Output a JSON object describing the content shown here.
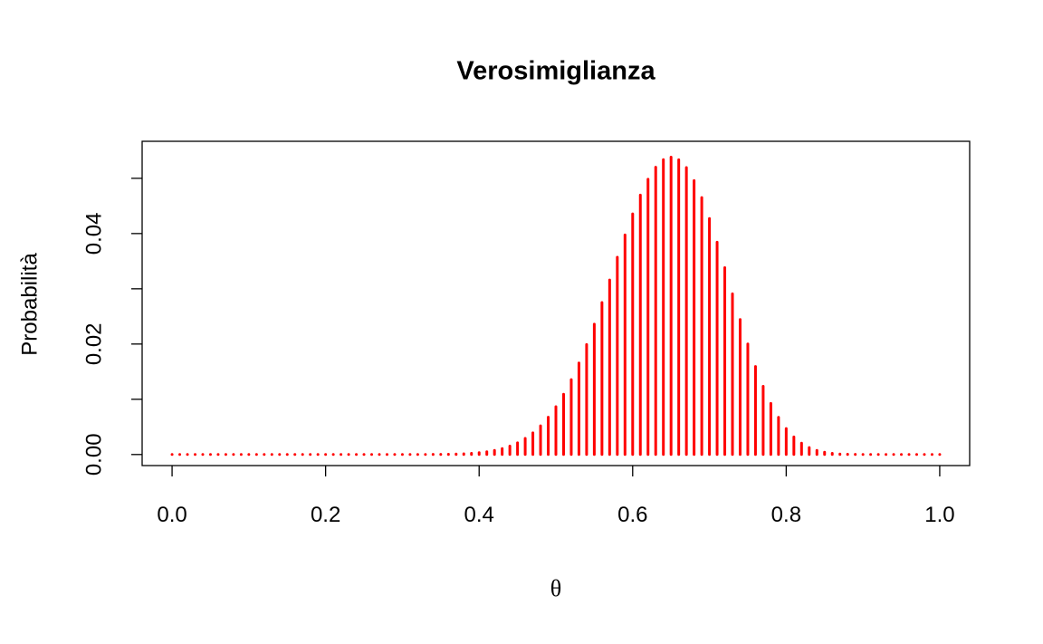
{
  "chart_data": {
    "type": "stem",
    "title": "Verosimiglianza",
    "xlabel": "θ",
    "ylabel": "Probabilità",
    "color": "#ff0000",
    "x": [
      0,
      0.01,
      0.02,
      0.03,
      0.04,
      0.05,
      0.06,
      0.07,
      0.08,
      0.09,
      0.1,
      0.11,
      0.12,
      0.13,
      0.14,
      0.15,
      0.16,
      0.17,
      0.18,
      0.19,
      0.2,
      0.21,
      0.22,
      0.23,
      0.24,
      0.25,
      0.26,
      0.27,
      0.28,
      0.29,
      0.3,
      0.31,
      0.32,
      0.33,
      0.34,
      0.35,
      0.36,
      0.37,
      0.38,
      0.39,
      0.4,
      0.41,
      0.42,
      0.43,
      0.44,
      0.45,
      0.46,
      0.47,
      0.48,
      0.49,
      0.5,
      0.51,
      0.52,
      0.53,
      0.54,
      0.55,
      0.56,
      0.57,
      0.58,
      0.59,
      0.6,
      0.61,
      0.62,
      0.63,
      0.64,
      0.65,
      0.66,
      0.67,
      0.68,
      0.69,
      0.7,
      0.71,
      0.72,
      0.73,
      0.74,
      0.75,
      0.76,
      0.77,
      0.78,
      0.79,
      0.8,
      0.81,
      0.82,
      0.83,
      0.84,
      0.85,
      0.86,
      0.87,
      0.88,
      0.89,
      0.9,
      0.91,
      0.92,
      0.93,
      0.94,
      0.95,
      0.96,
      0.97,
      0.98,
      0.99,
      1
    ],
    "values": [
      0,
      0,
      0,
      0,
      0,
      0,
      0,
      0,
      0,
      0,
      0,
      0,
      0,
      0,
      0,
      0,
      0,
      0,
      0,
      0,
      0,
      0,
      0,
      0,
      0,
      0,
      0,
      0,
      0,
      0,
      0,
      0,
      0,
      1e-05,
      2e-05,
      3e-05,
      5e-05,
      9e-05,
      0.00014,
      0.00022,
      0.00034,
      0.00051,
      0.00074,
      0.00107,
      0.00152,
      0.00212,
      0.00291,
      0.00392,
      0.00519,
      0.00675,
      0.00865,
      0.01091,
      0.01355,
      0.01656,
      0.01992,
      0.0236,
      0.02752,
      0.0316,
      0.03572,
      0.03976,
      0.04356,
      0.04697,
      0.04983,
      0.052,
      0.05337,
      0.05384,
      0.05336,
      0.05194,
      0.04959,
      0.04651,
      0.04272,
      0.03843,
      0.03382,
      0.0291,
      0.02443,
      0.02001,
      0.01594,
      0.01234,
      0.00926,
      0.00673,
      0.00471,
      0.00318,
      0.00205,
      0.00126,
      0.00074,
      0.00041,
      0.00021,
      0.0001,
      4e-05,
      2e-05,
      1e-05,
      0,
      0,
      0,
      0,
      0,
      0,
      0,
      0,
      0,
      0
    ],
    "xlim": [
      -0.039,
      1.039
    ],
    "ylim": [
      -0.002,
      0.0567
    ],
    "xticks": [
      {
        "value": 0,
        "label": "0.0"
      },
      0.2,
      0.4,
      0.6,
      0.8,
      {
        "value": 1,
        "label": "1.0"
      }
    ],
    "yticks": [
      {
        "value": 0,
        "label": "0.00"
      },
      0.02,
      0.04
    ],
    "yticks_unlabeled": [
      0.01,
      0.03,
      0.05
    ]
  }
}
